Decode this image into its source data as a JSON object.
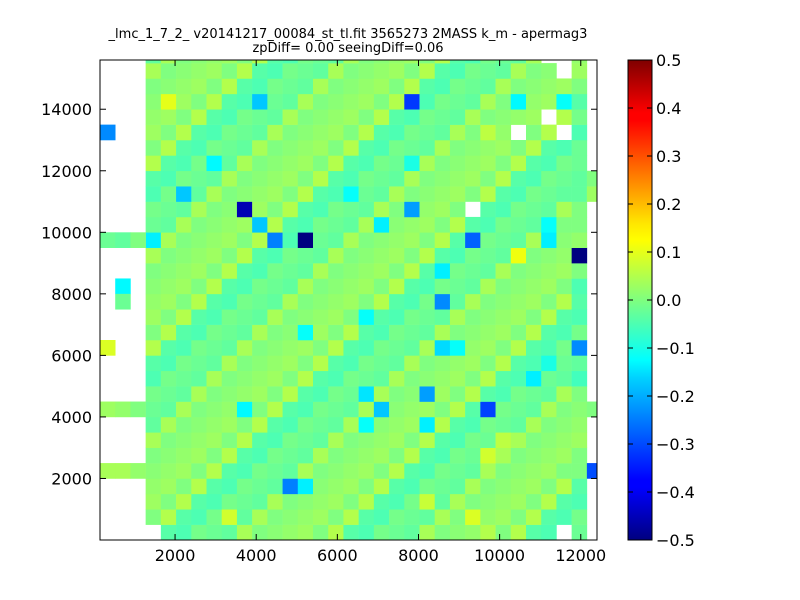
{
  "chart_data": {
    "type": "heatmap",
    "title_line1": "_lmc_1_7_2_ v20141217_00084_st_tl.fit 3565273 2MASS k_m - apermag3",
    "title_line2": "zpDiff= 0.00 seeingDiff=0.06",
    "xlabel": "",
    "ylabel": "",
    "xlim": [
      150,
      12400
    ],
    "ylim": [
      0,
      15600
    ],
    "x_ticks": [
      2000,
      4000,
      6000,
      8000,
      10000,
      12000
    ],
    "y_ticks": [
      2000,
      4000,
      6000,
      8000,
      10000,
      12000,
      14000
    ],
    "x_tick_labels": [
      "2000",
      "4000",
      "6000",
      "8000",
      "10000",
      "12000"
    ],
    "y_tick_labels": [
      "2000",
      "4000",
      "6000",
      "8000",
      "10000",
      "12000",
      "14000"
    ],
    "colorbar": {
      "colormap": "jet",
      "vmin": -0.5,
      "vmax": 0.5,
      "ticks": [
        -0.5,
        -0.4,
        -0.3,
        -0.2,
        -0.1,
        0.0,
        0.1,
        0.2,
        0.3,
        0.4,
        0.5
      ],
      "tick_labels": [
        "−0.5",
        "−0.4",
        "−0.3",
        "−0.2",
        "−0.1",
        "0.0",
        "0.1",
        "0.2",
        "0.3",
        "0.4",
        "0.5"
      ]
    },
    "grid": {
      "x_start": 150,
      "cell_width": 375,
      "y_start": 0,
      "cell_height": 500,
      "columns": 33,
      "rows": 32,
      "column_range_default": [
        3,
        31
      ],
      "base_value_pattern": [
        0.02,
        -0.02,
        0.0,
        0.04,
        -0.04,
        0.01,
        -0.01,
        0.03,
        -0.03,
        0.05,
        0.0,
        -0.05
      ],
      "extra_cells": [
        {
          "col": 31,
          "row": 10,
          "value": -0.06
        },
        {
          "col": 31,
          "row": 4,
          "value": 0.0
        },
        {
          "col": 31,
          "row": 12,
          "value": -0.04
        },
        {
          "col": 31,
          "row": 16,
          "value": -0.05
        },
        {
          "col": 31,
          "row": 18,
          "value": -0.02
        },
        {
          "col": 31,
          "row": 20,
          "value": 0.0
        },
        {
          "col": 31,
          "row": 22,
          "value": -0.03
        },
        {
          "col": 31,
          "row": 25,
          "value": -0.02
        },
        {
          "col": 31,
          "row": 27,
          "value": -0.01
        },
        {
          "col": 31,
          "row": 28,
          "value": -0.04
        },
        {
          "col": 31,
          "row": 29,
          "value": 0.0
        },
        {
          "col": 32,
          "row": 4,
          "value": -0.3
        },
        {
          "col": 32,
          "row": 8,
          "value": 0.0
        },
        {
          "col": 32,
          "row": 22,
          "value": 0.03
        },
        {
          "col": 32,
          "row": 23,
          "value": 0.0
        },
        {
          "col": 0,
          "row": 4,
          "value": 0.04
        },
        {
          "col": 1,
          "row": 4,
          "value": 0.04
        },
        {
          "col": 2,
          "row": 4,
          "value": 0.02
        },
        {
          "col": 0,
          "row": 8,
          "value": 0.03
        },
        {
          "col": 1,
          "row": 8,
          "value": 0.02
        },
        {
          "col": 2,
          "row": 8,
          "value": 0.0
        },
        {
          "col": 0,
          "row": 12,
          "value": 0.09
        },
        {
          "col": 0,
          "row": 19,
          "value": -0.02
        },
        {
          "col": 1,
          "row": 19,
          "value": -0.03
        },
        {
          "col": 2,
          "row": 19,
          "value": 0.0
        },
        {
          "col": 1,
          "row": 16,
          "value": -0.13
        },
        {
          "col": 1,
          "row": 15,
          "value": -0.02
        },
        {
          "col": 0,
          "row": 26,
          "value": -0.24
        }
      ],
      "holes": [
        {
          "col": 30,
          "row": 31
        },
        {
          "col": 30,
          "row": 30
        },
        {
          "col": 29,
          "row": 31
        },
        {
          "col": 29,
          "row": 27
        },
        {
          "col": 27,
          "row": 26
        },
        {
          "col": 24,
          "row": 21
        },
        {
          "col": 30,
          "row": 26
        },
        {
          "col": 3,
          "row": 0
        },
        {
          "col": 30,
          "row": 0
        }
      ],
      "special_cells": [
        {
          "col": 4,
          "row": 28,
          "value": 0.1
        },
        {
          "col": 10,
          "row": 28,
          "value": -0.18
        },
        {
          "col": 20,
          "row": 28,
          "value": -0.32
        },
        {
          "col": 27,
          "row": 28,
          "value": -0.13
        },
        {
          "col": 30,
          "row": 28,
          "value": -0.12
        },
        {
          "col": 25,
          "row": 26,
          "value": 0.06
        },
        {
          "col": 7,
          "row": 24,
          "value": -0.13
        },
        {
          "col": 20,
          "row": 24,
          "value": -0.1
        },
        {
          "col": 5,
          "row": 22,
          "value": -0.18
        },
        {
          "col": 16,
          "row": 22,
          "value": -0.12
        },
        {
          "col": 20,
          "row": 21,
          "value": -0.22
        },
        {
          "col": 9,
          "row": 21,
          "value": -0.45
        },
        {
          "col": 10,
          "row": 20,
          "value": -0.18
        },
        {
          "col": 18,
          "row": 20,
          "value": -0.14
        },
        {
          "col": 29,
          "row": 20,
          "value": -0.12
        },
        {
          "col": 29,
          "row": 19,
          "value": -0.14
        },
        {
          "col": 3,
          "row": 19,
          "value": -0.14
        },
        {
          "col": 11,
          "row": 19,
          "value": -0.25
        },
        {
          "col": 13,
          "row": 19,
          "value": -0.5
        },
        {
          "col": 24,
          "row": 19,
          "value": -0.28
        },
        {
          "col": 31,
          "row": 18,
          "value": -0.52
        },
        {
          "col": 27,
          "row": 18,
          "value": 0.11
        },
        {
          "col": 22,
          "row": 17,
          "value": -0.14
        },
        {
          "col": 22,
          "row": 15,
          "value": -0.24
        },
        {
          "col": 17,
          "row": 14,
          "value": -0.12
        },
        {
          "col": 13,
          "row": 13,
          "value": -0.12
        },
        {
          "col": 22,
          "row": 12,
          "value": -0.16
        },
        {
          "col": 23,
          "row": 12,
          "value": -0.12
        },
        {
          "col": 31,
          "row": 12,
          "value": -0.24
        },
        {
          "col": 29,
          "row": 11,
          "value": -0.1
        },
        {
          "col": 28,
          "row": 10,
          "value": -0.14
        },
        {
          "col": 17,
          "row": 9,
          "value": -0.15
        },
        {
          "col": 21,
          "row": 9,
          "value": -0.22
        },
        {
          "col": 9,
          "row": 8,
          "value": -0.13
        },
        {
          "col": 18,
          "row": 8,
          "value": -0.18
        },
        {
          "col": 25,
          "row": 8,
          "value": -0.31
        },
        {
          "col": 17,
          "row": 7,
          "value": -0.12
        },
        {
          "col": 21,
          "row": 7,
          "value": -0.14
        },
        {
          "col": 26,
          "row": 6,
          "value": 0.06
        },
        {
          "col": 25,
          "row": 5,
          "value": 0.08
        },
        {
          "col": 12,
          "row": 3,
          "value": -0.25
        },
        {
          "col": 13,
          "row": 3,
          "value": -0.14
        },
        {
          "col": 21,
          "row": 2,
          "value": 0.07
        },
        {
          "col": 24,
          "row": 1,
          "value": 0.09
        },
        {
          "col": 8,
          "row": 1,
          "value": 0.08
        },
        {
          "col": 25,
          "row": 0,
          "value": 0.05
        }
      ]
    }
  }
}
